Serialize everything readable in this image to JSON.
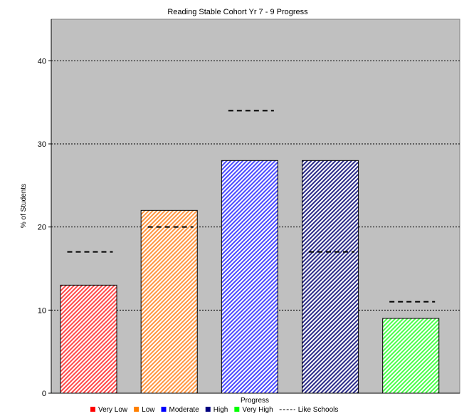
{
  "chart_data": {
    "type": "bar",
    "title": "Reading Stable Cohort Yr 7 - 9 Progress",
    "xlabel": "Progress",
    "ylabel": "% of Students",
    "ylim": [
      0,
      45
    ],
    "yticks": [
      0,
      10,
      20,
      30,
      40
    ],
    "grid": true,
    "legend_position": "bottom",
    "categories": [
      "Very Low",
      "Low",
      "Moderate",
      "High",
      "Very High"
    ],
    "series": [
      {
        "name": "",
        "values": [
          13,
          22,
          28,
          28,
          9
        ],
        "colors": [
          "#ff4a4a",
          "#ff9540",
          "#4a4aff",
          "#2a2a88",
          "#4aff4a"
        ]
      },
      {
        "name": "Like Schools",
        "style": "dashed",
        "values": [
          17,
          20,
          34,
          17,
          11
        ]
      }
    ],
    "legend": [
      {
        "label": "Very Low",
        "color": "#ff0000",
        "symbol": "square"
      },
      {
        "label": "Low",
        "color": "#ff7f00",
        "symbol": "square"
      },
      {
        "label": "Moderate",
        "color": "#0000ff",
        "symbol": "square"
      },
      {
        "label": "High",
        "color": "#000080",
        "symbol": "square"
      },
      {
        "label": "Very High",
        "color": "#00ff00",
        "symbol": "square"
      },
      {
        "label": "Like Schools",
        "color": "#000000",
        "symbol": "dash"
      }
    ],
    "plot_background": "#c0c0c0"
  }
}
